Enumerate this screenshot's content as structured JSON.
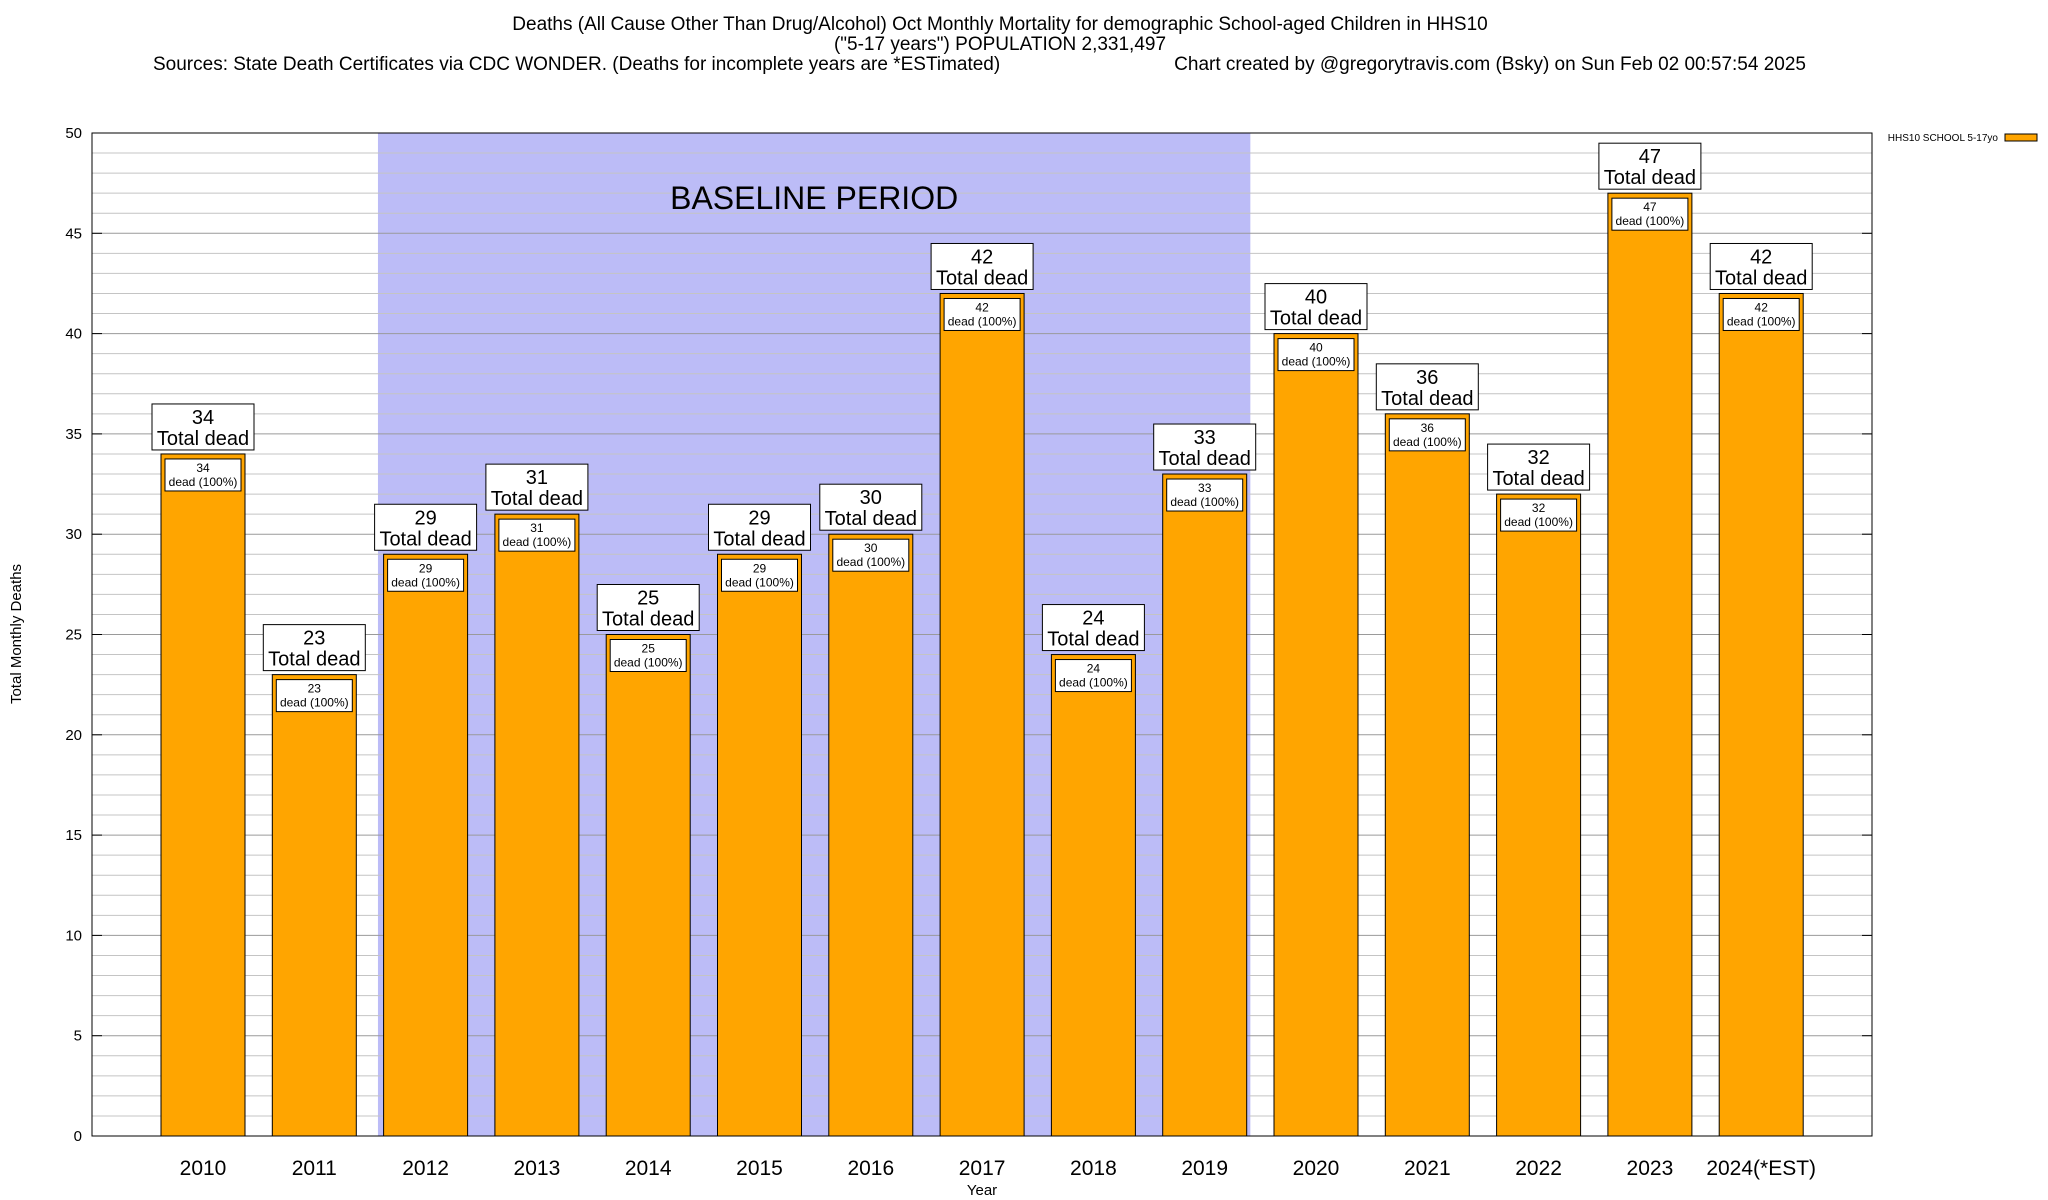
{
  "chart_data": {
    "type": "bar",
    "title": "Deaths (All Cause Other Than Drug/Alcohol) Oct Monthly Mortality for demographic School-aged Children in HHS10",
    "subtitle": "(\"5-17 years\") POPULATION 2,331,497",
    "source_line": "Sources: State Death Certificates via CDC WONDER. (Deaths for incomplete years are *ESTimated)",
    "credit_line": "Chart created by @gregorytravis.com (Bsky) on Sun Feb 02 00:57:54 2025",
    "xlabel": "Year",
    "ylabel": "Total Monthly Deaths",
    "ylim": [
      0,
      50
    ],
    "yticks": [
      0,
      5,
      10,
      15,
      20,
      25,
      30,
      35,
      40,
      45,
      50
    ],
    "categories": [
      "2010",
      "2011",
      "2012",
      "2013",
      "2014",
      "2015",
      "2016",
      "2017",
      "2018",
      "2019",
      "2020",
      "2021",
      "2022",
      "2023",
      "2024(*EST)"
    ],
    "series": [
      {
        "name": "HHS10 SCHOOL 5-17yo",
        "color": "#ffa500",
        "values": [
          34,
          23,
          29,
          31,
          25,
          29,
          30,
          42,
          24,
          33,
          40,
          36,
          32,
          47,
          42
        ]
      }
    ],
    "total_label_text": "Total dead",
    "segment_label_text": "dead (100%)",
    "baseline": {
      "label": "BASELINE PERIOD",
      "from": "2012",
      "to": "2019",
      "color": "#bcbcf7"
    },
    "grid": true,
    "legend_position": "top-right"
  }
}
